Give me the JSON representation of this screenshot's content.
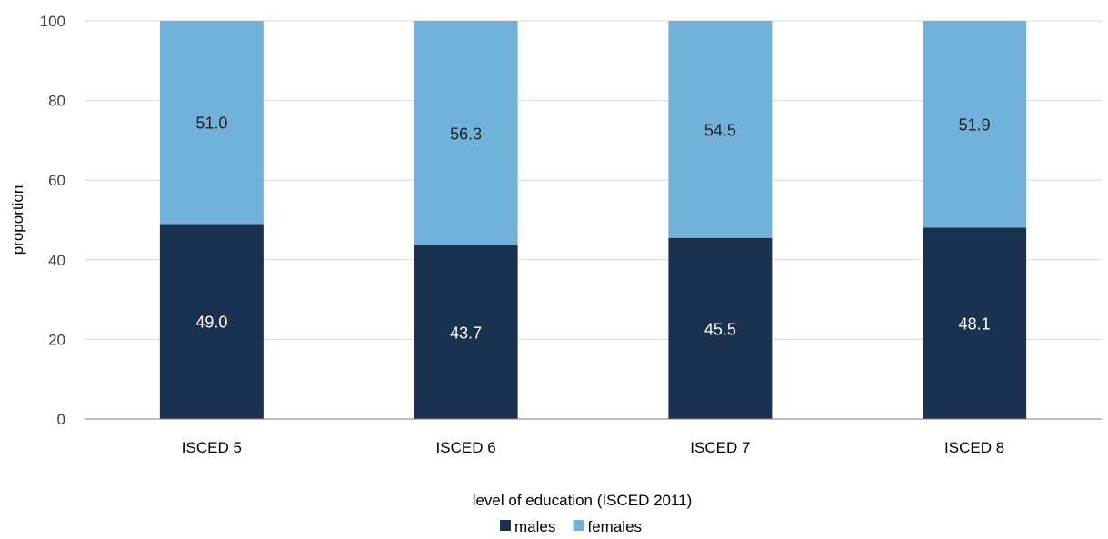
{
  "chart_data": {
    "type": "bar",
    "stacked": true,
    "categories": [
      "ISCED 5",
      "ISCED 6",
      "ISCED 7",
      "ISCED 8"
    ],
    "series": [
      {
        "name": "males",
        "values": [
          49.0,
          43.7,
          45.5,
          48.1
        ],
        "labels": [
          "49.0",
          "43.7",
          "45.5",
          "48.1"
        ],
        "color": "#1a3150",
        "label_color": "#ffffff"
      },
      {
        "name": "females",
        "values": [
          51.0,
          56.3,
          54.5,
          51.9
        ],
        "labels": [
          "51.0",
          "56.3",
          "54.5",
          "51.9"
        ],
        "color": "#72b2da",
        "label_color": "#1f1f1f"
      }
    ],
    "title": "",
    "xlabel": "level of education (ISCED 2011)",
    "ylabel": "proportion",
    "ylim": [
      0,
      100
    ],
    "yticks": [
      "0",
      "20",
      "40",
      "60",
      "80",
      "100"
    ],
    "grid": true,
    "legend": "bottom-center",
    "gridline_color": "#d9d9d9",
    "axis_color": "#7f7f7f"
  }
}
